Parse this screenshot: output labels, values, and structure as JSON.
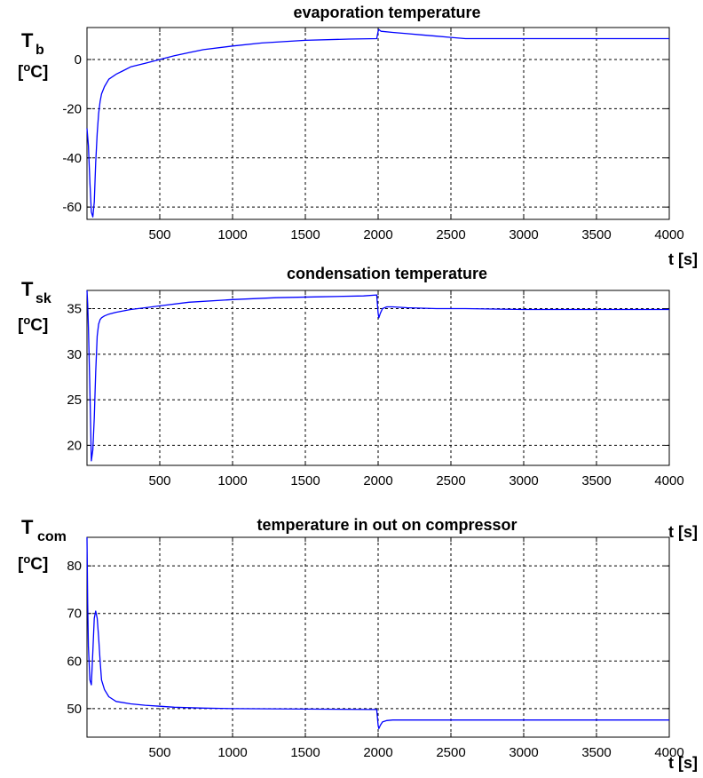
{
  "chart_data": [
    {
      "type": "line",
      "title": "evaporation temperature",
      "ylabel": {
        "main": "T",
        "sub": "b",
        "unit_open": "[",
        "unit_sup": "o",
        "unit_rest": "C]"
      },
      "xlabel": "t [s]",
      "xlim": [
        0,
        4000
      ],
      "ylim": [
        -65,
        13
      ],
      "xticks": [
        500,
        1000,
        1500,
        2000,
        2500,
        3000,
        3500,
        4000
      ],
      "yticks": [
        -60,
        -40,
        -20,
        0
      ],
      "grid": true,
      "color": "#0000ff",
      "series": [
        {
          "x": [
            0,
            10,
            20,
            30,
            40,
            50,
            60,
            70,
            80,
            90,
            100,
            120,
            150,
            200,
            250,
            300,
            400,
            500,
            600,
            700,
            800,
            1000,
            1200,
            1500,
            1800,
            1990,
            2000,
            2005,
            2020,
            2100,
            2200,
            2300,
            2400,
            2500,
            2600,
            3000,
            3500,
            4000
          ],
          "y": [
            -28,
            -35,
            -50,
            -62,
            -64,
            -58,
            -42,
            -30,
            -22,
            -17,
            -14,
            -11,
            -8,
            -6,
            -4.5,
            -3,
            -1.5,
            0,
            1.5,
            2.8,
            4,
            5.5,
            6.7,
            7.8,
            8.3,
            8.5,
            11.5,
            12.2,
            11.5,
            11,
            10.5,
            10,
            9.5,
            9,
            8.5,
            8.5,
            8.5,
            8.5
          ]
        }
      ]
    },
    {
      "type": "line",
      "title": "condensation temperature",
      "ylabel": {
        "main": "T",
        "sub": "sk",
        "unit_open": "[",
        "unit_sup": "o",
        "unit_rest": "C]"
      },
      "xlabel": "t [s]",
      "xlim": [
        0,
        4000
      ],
      "ylim": [
        17.8,
        37
      ],
      "xticks": [
        500,
        1000,
        1500,
        2000,
        2500,
        3000,
        3500,
        4000
      ],
      "yticks": [
        20,
        25,
        30,
        35
      ],
      "grid": true,
      "color": "#0000ff",
      "series": [
        {
          "x": [
            0,
            5,
            10,
            20,
            30,
            40,
            50,
            60,
            70,
            80,
            90,
            100,
            120,
            150,
            200,
            300,
            400,
            500,
            700,
            1000,
            1300,
            1600,
            1900,
            1990,
            2000,
            2005,
            2015,
            2030,
            2060,
            2100,
            2200,
            2400,
            2600,
            3000,
            3500,
            4000
          ],
          "y": [
            37,
            35.5,
            33,
            26,
            18.3,
            19.5,
            23,
            28,
            32,
            33.3,
            33.8,
            34,
            34.2,
            34.4,
            34.6,
            34.9,
            35.1,
            35.3,
            35.7,
            36,
            36.2,
            36.3,
            36.4,
            36.5,
            34.5,
            34.0,
            34.5,
            35.0,
            35.2,
            35.2,
            35.1,
            35.0,
            35.0,
            34.9,
            34.9,
            34.9
          ]
        }
      ]
    },
    {
      "type": "line",
      "title": "temperature in out on compressor",
      "ylabel": {
        "main": "T",
        "sub": "com",
        "unit_open": "[",
        "unit_sup": "o",
        "unit_rest": "C]"
      },
      "xlabel": "t [s]",
      "xlim": [
        0,
        4000
      ],
      "ylim": [
        44,
        86
      ],
      "xticks": [
        500,
        1000,
        1500,
        2000,
        2500,
        3000,
        3500,
        4000
      ],
      "yticks": [
        50,
        60,
        70,
        80
      ],
      "grid": true,
      "color": "#0000ff",
      "series": [
        {
          "x": [
            0,
            5,
            10,
            20,
            30,
            40,
            50,
            60,
            70,
            80,
            90,
            100,
            120,
            150,
            200,
            300,
            400,
            500,
            600,
            800,
            1000,
            1500,
            1990,
            2000,
            2005,
            2015,
            2030,
            2060,
            2100,
            2300,
            2600,
            3000,
            3500,
            4000
          ],
          "y": [
            86,
            72,
            63,
            56,
            55,
            62,
            69,
            70.5,
            69,
            65,
            60,
            56,
            54,
            52.5,
            51.5,
            51,
            50.7,
            50.5,
            50.3,
            50.1,
            50,
            49.9,
            49.8,
            46.5,
            45.8,
            46.5,
            47.2,
            47.5,
            47.6,
            47.6,
            47.6,
            47.6,
            47.6,
            47.6
          ]
        }
      ]
    }
  ]
}
